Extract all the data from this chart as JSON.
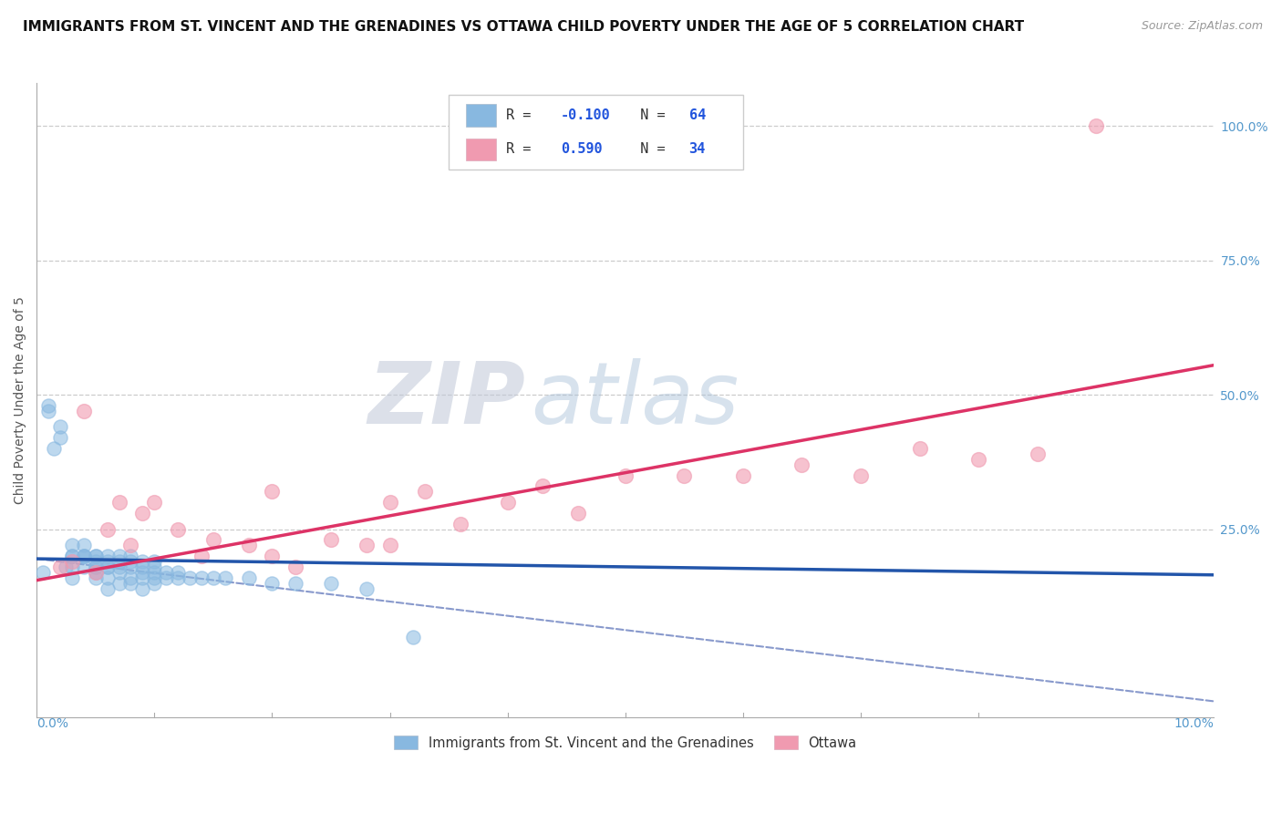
{
  "title": "IMMIGRANTS FROM ST. VINCENT AND THE GRENADINES VS OTTAWA CHILD POVERTY UNDER THE AGE OF 5 CORRELATION CHART",
  "source": "Source: ZipAtlas.com",
  "ylabel": "Child Poverty Under the Age of 5",
  "ytick_values": [
    0.25,
    0.5,
    0.75,
    1.0
  ],
  "ytick_labels": [
    "25.0%",
    "50.0%",
    "75.0%",
    "100.0%"
  ],
  "xlim": [
    0.0,
    0.1
  ],
  "ylim": [
    -0.1,
    1.08
  ],
  "blue_R": "-0.100",
  "blue_N": "64",
  "pink_R": "0.590",
  "pink_N": "34",
  "blue_color": "#88b8e0",
  "pink_color": "#f09ab0",
  "blue_trend_color": "#2255aa",
  "pink_trend_color": "#dd3366",
  "dashed_color": "#8899cc",
  "blue_label": "Immigrants from St. Vincent and the Grenadines",
  "pink_label": "Ottawa",
  "watermark_zip": "ZIP",
  "watermark_atlas": "atlas",
  "blue_x": [
    0.0005,
    0.001,
    0.001,
    0.0015,
    0.002,
    0.002,
    0.0025,
    0.003,
    0.003,
    0.003,
    0.003,
    0.003,
    0.004,
    0.004,
    0.004,
    0.004,
    0.004,
    0.005,
    0.005,
    0.005,
    0.005,
    0.005,
    0.005,
    0.005,
    0.006,
    0.006,
    0.006,
    0.006,
    0.006,
    0.006,
    0.007,
    0.007,
    0.007,
    0.007,
    0.007,
    0.008,
    0.008,
    0.008,
    0.008,
    0.008,
    0.009,
    0.009,
    0.009,
    0.009,
    0.009,
    0.01,
    0.01,
    0.01,
    0.01,
    0.01,
    0.011,
    0.011,
    0.012,
    0.012,
    0.013,
    0.014,
    0.015,
    0.016,
    0.018,
    0.02,
    0.022,
    0.025,
    0.028,
    0.032
  ],
  "blue_y": [
    0.17,
    0.47,
    0.48,
    0.4,
    0.42,
    0.44,
    0.18,
    0.2,
    0.22,
    0.2,
    0.18,
    0.16,
    0.2,
    0.22,
    0.18,
    0.2,
    0.2,
    0.17,
    0.18,
    0.19,
    0.2,
    0.2,
    0.18,
    0.16,
    0.18,
    0.19,
    0.2,
    0.18,
    0.16,
    0.14,
    0.19,
    0.2,
    0.18,
    0.17,
    0.15,
    0.19,
    0.2,
    0.18,
    0.16,
    0.15,
    0.18,
    0.19,
    0.17,
    0.16,
    0.14,
    0.18,
    0.19,
    0.17,
    0.16,
    0.15,
    0.17,
    0.16,
    0.17,
    0.16,
    0.16,
    0.16,
    0.16,
    0.16,
    0.16,
    0.15,
    0.15,
    0.15,
    0.14,
    0.05
  ],
  "pink_x": [
    0.002,
    0.003,
    0.004,
    0.005,
    0.006,
    0.007,
    0.008,
    0.009,
    0.01,
    0.012,
    0.015,
    0.018,
    0.02,
    0.022,
    0.025,
    0.028,
    0.03,
    0.033,
    0.036,
    0.04,
    0.043,
    0.046,
    0.05,
    0.055,
    0.06,
    0.065,
    0.07,
    0.075,
    0.08,
    0.085,
    0.014,
    0.02,
    0.03,
    0.09
  ],
  "pink_y": [
    0.18,
    0.19,
    0.47,
    0.17,
    0.25,
    0.3,
    0.22,
    0.28,
    0.3,
    0.25,
    0.23,
    0.22,
    0.32,
    0.18,
    0.23,
    0.22,
    0.3,
    0.32,
    0.26,
    0.3,
    0.33,
    0.28,
    0.35,
    0.35,
    0.35,
    0.37,
    0.35,
    0.4,
    0.38,
    0.39,
    0.2,
    0.2,
    0.22,
    1.0
  ],
  "blue_trend_x0": 0.0,
  "blue_trend_x1": 0.1,
  "blue_trend_y0": 0.195,
  "blue_trend_y1": 0.165,
  "pink_trend_x0": 0.0,
  "pink_trend_x1": 0.1,
  "pink_trend_y0": 0.155,
  "pink_trend_y1": 0.555,
  "dash_trend_x0": 0.0,
  "dash_trend_x1": 0.1,
  "dash_trend_y0": 0.195,
  "dash_trend_y1": -0.07,
  "background": "#ffffff",
  "title_fontsize": 11,
  "source_fontsize": 9,
  "tick_color": "#5599cc"
}
